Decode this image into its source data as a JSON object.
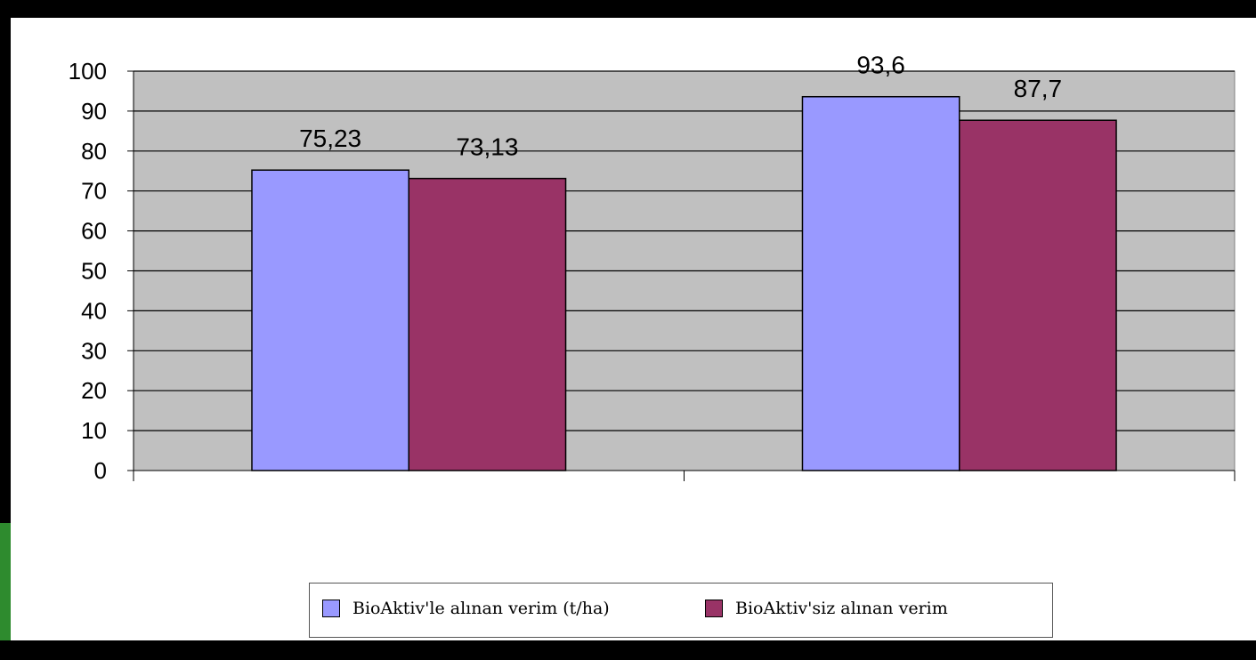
{
  "chart_data": {
    "type": "bar",
    "categories": [
      "",
      ""
    ],
    "series": [
      {
        "name": "BioAktiv'le alınan verim (t/ha)",
        "values": [
          75.23,
          93.6
        ],
        "color": "#9999ff"
      },
      {
        "name": "BioAktiv'siz alınan verim",
        "values": [
          73.13,
          87.7
        ],
        "color": "#993366"
      }
    ],
    "data_labels": [
      [
        "75,23",
        "93,6"
      ],
      [
        "73,13",
        "87,7"
      ]
    ],
    "ylim": [
      0,
      100
    ],
    "yticks": [
      "0",
      "10",
      "20",
      "30",
      "40",
      "50",
      "60",
      "70",
      "80",
      "90",
      "100"
    ],
    "grid": true,
    "plot_background": "#c0c0c0",
    "legend_position": "bottom"
  }
}
